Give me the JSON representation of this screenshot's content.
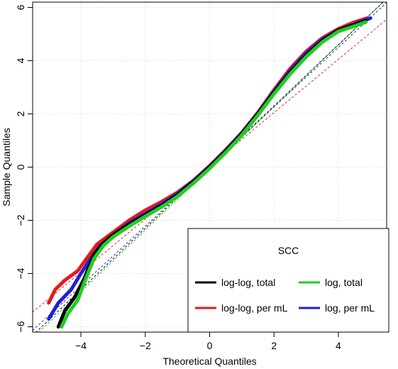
{
  "chart_data": {
    "type": "scatter",
    "title": "",
    "xlabel": "Theoretical Quantiles",
    "ylabel": "Sample Quantiles",
    "xlim": [
      -5.5,
      5.5
    ],
    "ylim": [
      -6.2,
      6.2
    ],
    "x_ticks": [
      -4,
      -2,
      0,
      2,
      4
    ],
    "y_ticks": [
      -6,
      -4,
      -2,
      0,
      2,
      4,
      6
    ],
    "grid": true,
    "legend": {
      "title": "SCC",
      "placement": "bottom-right",
      "entries": [
        {
          "label": "log-log, total",
          "color": "#000000"
        },
        {
          "label": "log, total",
          "color": "#22cc22"
        },
        {
          "label": "log-log, per mL",
          "color": "#e41a1c"
        },
        {
          "label": "log, per mL",
          "color": "#1f1fd6"
        }
      ]
    },
    "series": [
      {
        "name": "log-log, total",
        "color": "#000000",
        "points": [
          [
            -4.7,
            -6.0
          ],
          [
            -4.5,
            -5.4
          ],
          [
            -4.2,
            -4.9
          ],
          [
            -3.9,
            -4.2
          ],
          [
            -3.6,
            -3.3
          ],
          [
            -3.3,
            -2.85
          ],
          [
            -3.0,
            -2.55
          ],
          [
            -2.5,
            -2.15
          ],
          [
            -2.0,
            -1.8
          ],
          [
            -1.5,
            -1.45
          ],
          [
            -1.0,
            -1.05
          ],
          [
            -0.5,
            -0.55
          ],
          [
            0.0,
            0.0
          ],
          [
            0.5,
            0.6
          ],
          [
            1.0,
            1.25
          ],
          [
            1.5,
            2.0
          ],
          [
            2.0,
            2.8
          ],
          [
            2.5,
            3.55
          ],
          [
            3.0,
            4.2
          ],
          [
            3.5,
            4.75
          ],
          [
            4.0,
            5.15
          ],
          [
            4.5,
            5.35
          ],
          [
            4.85,
            5.5
          ]
        ]
      },
      {
        "name": "log, total",
        "color": "#22cc22",
        "points": [
          [
            -4.6,
            -6.0
          ],
          [
            -4.4,
            -5.5
          ],
          [
            -4.1,
            -5.0
          ],
          [
            -3.9,
            -4.35
          ],
          [
            -3.6,
            -3.45
          ],
          [
            -3.3,
            -2.95
          ],
          [
            -3.0,
            -2.62
          ],
          [
            -2.5,
            -2.22
          ],
          [
            -2.0,
            -1.85
          ],
          [
            -1.5,
            -1.5
          ],
          [
            -1.0,
            -1.1
          ],
          [
            -0.5,
            -0.6
          ],
          [
            0.0,
            -0.05
          ],
          [
            0.5,
            0.55
          ],
          [
            1.0,
            1.2
          ],
          [
            1.5,
            1.95
          ],
          [
            2.0,
            2.75
          ],
          [
            2.5,
            3.5
          ],
          [
            3.0,
            4.15
          ],
          [
            3.5,
            4.7
          ],
          [
            4.0,
            5.1
          ],
          [
            4.5,
            5.3
          ],
          [
            4.85,
            5.45
          ]
        ]
      },
      {
        "name": "log-log, per mL",
        "color": "#e41a1c",
        "points": [
          [
            -5.0,
            -5.1
          ],
          [
            -4.8,
            -4.6
          ],
          [
            -4.5,
            -4.25
          ],
          [
            -4.1,
            -3.9
          ],
          [
            -3.8,
            -3.4
          ],
          [
            -3.5,
            -2.9
          ],
          [
            -3.0,
            -2.45
          ],
          [
            -2.5,
            -2.0
          ],
          [
            -2.0,
            -1.62
          ],
          [
            -1.5,
            -1.3
          ],
          [
            -1.0,
            -0.95
          ],
          [
            -0.5,
            -0.5
          ],
          [
            0.0,
            0.05
          ],
          [
            0.5,
            0.65
          ],
          [
            1.0,
            1.3
          ],
          [
            1.5,
            2.05
          ],
          [
            2.0,
            2.9
          ],
          [
            2.5,
            3.7
          ],
          [
            3.0,
            4.35
          ],
          [
            3.5,
            4.85
          ],
          [
            4.0,
            5.2
          ],
          [
            4.5,
            5.45
          ],
          [
            4.9,
            5.6
          ]
        ]
      },
      {
        "name": "log, per mL",
        "color": "#1f1fd6",
        "points": [
          [
            -5.0,
            -5.7
          ],
          [
            -4.7,
            -5.1
          ],
          [
            -4.3,
            -4.6
          ],
          [
            -4.0,
            -4.0
          ],
          [
            -3.7,
            -3.45
          ],
          [
            -3.4,
            -2.95
          ],
          [
            -3.0,
            -2.55
          ],
          [
            -2.5,
            -2.1
          ],
          [
            -2.0,
            -1.75
          ],
          [
            -1.5,
            -1.4
          ],
          [
            -1.0,
            -1.0
          ],
          [
            -0.5,
            -0.52
          ],
          [
            0.0,
            0.02
          ],
          [
            0.5,
            0.62
          ],
          [
            1.0,
            1.28
          ],
          [
            1.5,
            2.02
          ],
          [
            2.0,
            2.85
          ],
          [
            2.5,
            3.62
          ],
          [
            3.0,
            4.28
          ],
          [
            3.5,
            4.8
          ],
          [
            4.0,
            5.15
          ],
          [
            4.5,
            5.38
          ],
          [
            5.0,
            5.6
          ]
        ]
      }
    ],
    "reference_lines": [
      {
        "color": "#e41a1c",
        "slope": 1.0,
        "intercept": 0.05
      },
      {
        "color": "#1f1fd6",
        "slope": 1.12,
        "intercept": 0.02
      },
      {
        "color": "#22cc22",
        "slope": 1.16,
        "intercept": -0.05
      },
      {
        "color": "#000000",
        "slope": 1.15,
        "intercept": 0.0
      }
    ]
  }
}
